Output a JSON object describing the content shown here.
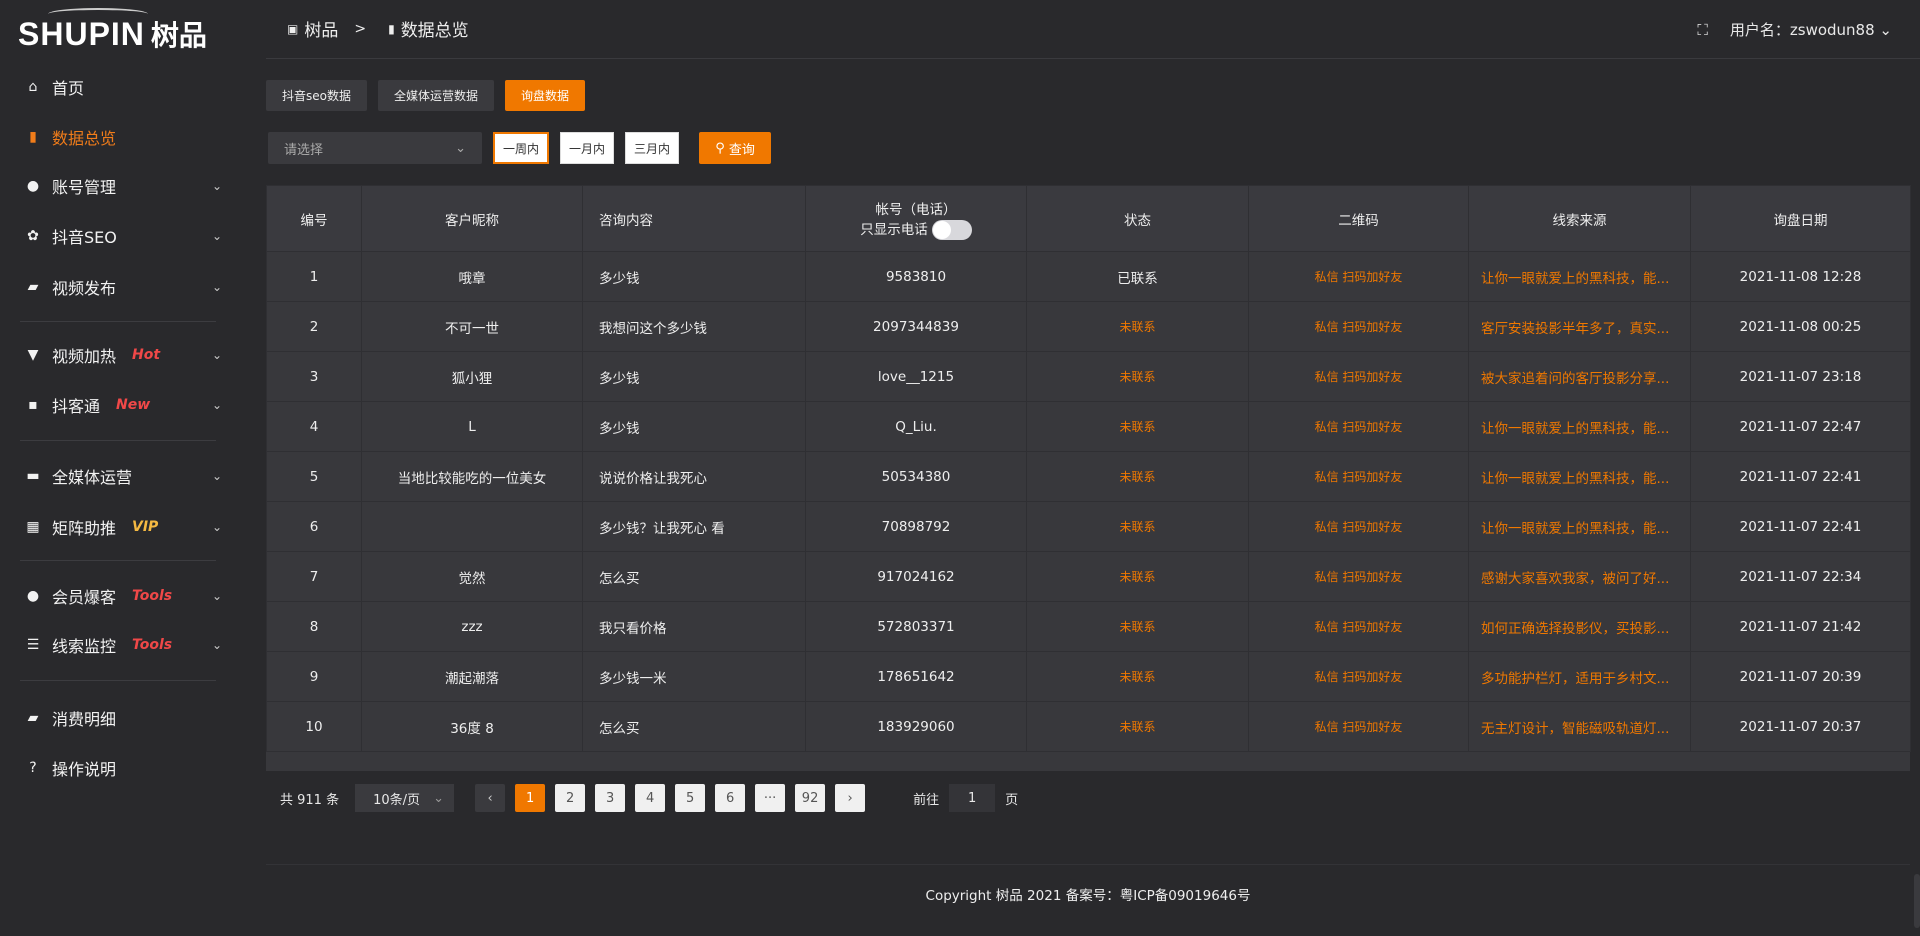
{
  "brand": {
    "logo_en": "SHUPIN",
    "logo_cn": "树品"
  },
  "sidebar": {
    "items": [
      {
        "label": "首页",
        "icon": "home-icon",
        "glyph": "⌂",
        "chevron": false
      },
      {
        "label": "数据总览",
        "icon": "bar-chart-icon",
        "glyph": "▮",
        "chevron": false,
        "active": true
      },
      {
        "label": "账号管理",
        "icon": "user-icon",
        "glyph": "●",
        "chevron": true
      },
      {
        "label": "抖音SEO",
        "icon": "gear-icon",
        "glyph": "✿",
        "chevron": true
      },
      {
        "label": "视频发布",
        "icon": "camera-icon",
        "glyph": "▰",
        "chevron": true
      },
      {
        "label": "视频加热",
        "icon": "brush-icon",
        "glyph": "▼",
        "chevron": true,
        "badge": "Hot"
      },
      {
        "label": "抖客通",
        "icon": "chat-icon",
        "glyph": "▪",
        "chevron": true,
        "badge": "New"
      },
      {
        "label": "全媒体运营",
        "icon": "monitor-icon",
        "glyph": "▬",
        "chevron": true
      },
      {
        "label": "矩阵助推",
        "icon": "grid-icon",
        "glyph": "▦",
        "chevron": true,
        "badge": "VIP"
      },
      {
        "label": "会员爆客",
        "icon": "user-icon",
        "glyph": "●",
        "chevron": true,
        "badge": "Tools"
      },
      {
        "label": "线索监控",
        "icon": "sliders-icon",
        "glyph": "☰",
        "chevron": true,
        "badge": "Tools"
      },
      {
        "label": "消费明细",
        "icon": "wallet-icon",
        "glyph": "▰",
        "chevron": false
      },
      {
        "label": "操作说明",
        "icon": "help-icon",
        "glyph": "?",
        "chevron": false
      }
    ]
  },
  "header": {
    "crumb_home": "树品",
    "crumb_sep": ">",
    "crumb_current": "数据总览",
    "user_label": "用户名：zswodun88"
  },
  "tabs": [
    {
      "label": "抖音seo数据"
    },
    {
      "label": "全媒体运营数据"
    },
    {
      "label": "询盘数据",
      "active": true
    }
  ],
  "filters": {
    "select_placeholder": "请选择",
    "ranges": [
      "一周内",
      "一月内",
      "三月内"
    ],
    "active_range": "一周内",
    "query_label": "查询"
  },
  "table": {
    "columns": [
      "编号",
      "客户昵称",
      "咨询内容",
      "帐号（电话）",
      "状态",
      "二维码",
      "线索来源",
      "询盘日期"
    ],
    "phone_toggle_label": "只显示电话",
    "phone_toggle_on": false,
    "rows": [
      [
        "1",
        "哦章",
        "多少钱",
        "9583810",
        "已联系",
        "私信 扫码加好友",
        "让你一眼就爱上的黑科技，能...",
        "2021-11-08 12:28"
      ],
      [
        "2",
        "不可一世",
        "我想问这个多少钱",
        "2097344839",
        "未联系",
        "私信 扫码加好友",
        "客厅安装投影半年多了，真实...",
        "2021-11-08 00:25"
      ],
      [
        "3",
        "狐小狸",
        "多少钱",
        "love__1215",
        "未联系",
        "私信 扫码加好友",
        "被大家追着问的客厅投影分享...",
        "2021-11-07 23:18"
      ],
      [
        "4",
        "L",
        "多少钱",
        "Q_Liu.",
        "未联系",
        "私信 扫码加好友",
        "让你一眼就爱上的黑科技，能...",
        "2021-11-07 22:47"
      ],
      [
        "5",
        "当地比较能吃的一位美女",
        "说说价格让我死心",
        "50534380",
        "未联系",
        "私信 扫码加好友",
        "让你一眼就爱上的黑科技，能...",
        "2021-11-07 22:41"
      ],
      [
        "6",
        "",
        "多少钱？让我死心 看",
        "70898792",
        "未联系",
        "私信 扫码加好友",
        "让你一眼就爱上的黑科技，能...",
        "2021-11-07 22:41"
      ],
      [
        "7",
        "觉然",
        "怎么买",
        "917024162",
        "未联系",
        "私信 扫码加好友",
        "感谢大家喜欢我家，被问了好...",
        "2021-11-07 22:34"
      ],
      [
        "8",
        "zzz",
        "我只看价格",
        "572803371",
        "未联系",
        "私信 扫码加好友",
        "如何正确选择投影仪，买投影...",
        "2021-11-07 21:42"
      ],
      [
        "9",
        "潮起潮落",
        "多少钱一米",
        "178651642",
        "未联系",
        "私信 扫码加好友",
        "多功能护栏灯，适用于乡村文...",
        "2021-11-07 20:39"
      ],
      [
        "10",
        "36度 8",
        "怎么买",
        "183929060",
        "未联系",
        "私信 扫码加好友",
        "无主灯设计，智能磁吸轨道灯...",
        "2021-11-07 20:37"
      ]
    ]
  },
  "pagination": {
    "total_label": "共 911 条",
    "page_size": "10条/页",
    "pages": [
      "1",
      "2",
      "3",
      "4",
      "5",
      "6",
      "···",
      "92"
    ],
    "current": "1",
    "goto_label": "前往",
    "goto_value": "1",
    "page_suffix": "页"
  },
  "footer": {
    "copyright": "Copyright 树品 2021 备案号：粤ICP备09019646号"
  },
  "colors": {
    "accent": "#f07800",
    "hot": "#f04848",
    "vip": "#f5b942",
    "background": "#29292c"
  }
}
